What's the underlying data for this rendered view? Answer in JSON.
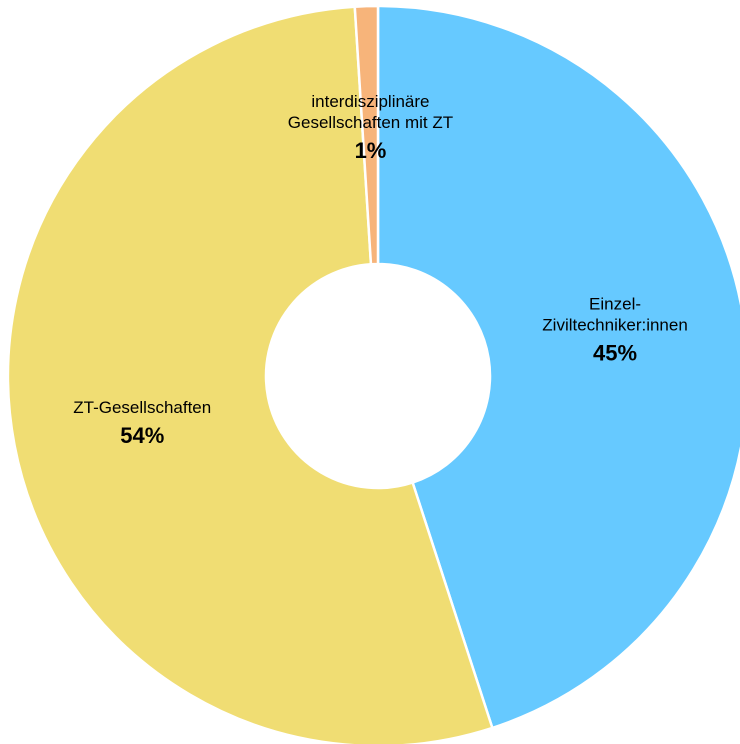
{
  "chart_data": {
    "type": "pie",
    "categories": [
      "Einzel-\nZiviltechniker:innen",
      "ZT-Gesellschaften",
      "interdisziplinäre\nGesellschaften mit ZT"
    ],
    "values": [
      45,
      54,
      1
    ],
    "value_labels": [
      "45%",
      "54%",
      "1%"
    ],
    "colors": [
      "#66c9ff",
      "#f0dd73",
      "#f7b47a"
    ]
  }
}
